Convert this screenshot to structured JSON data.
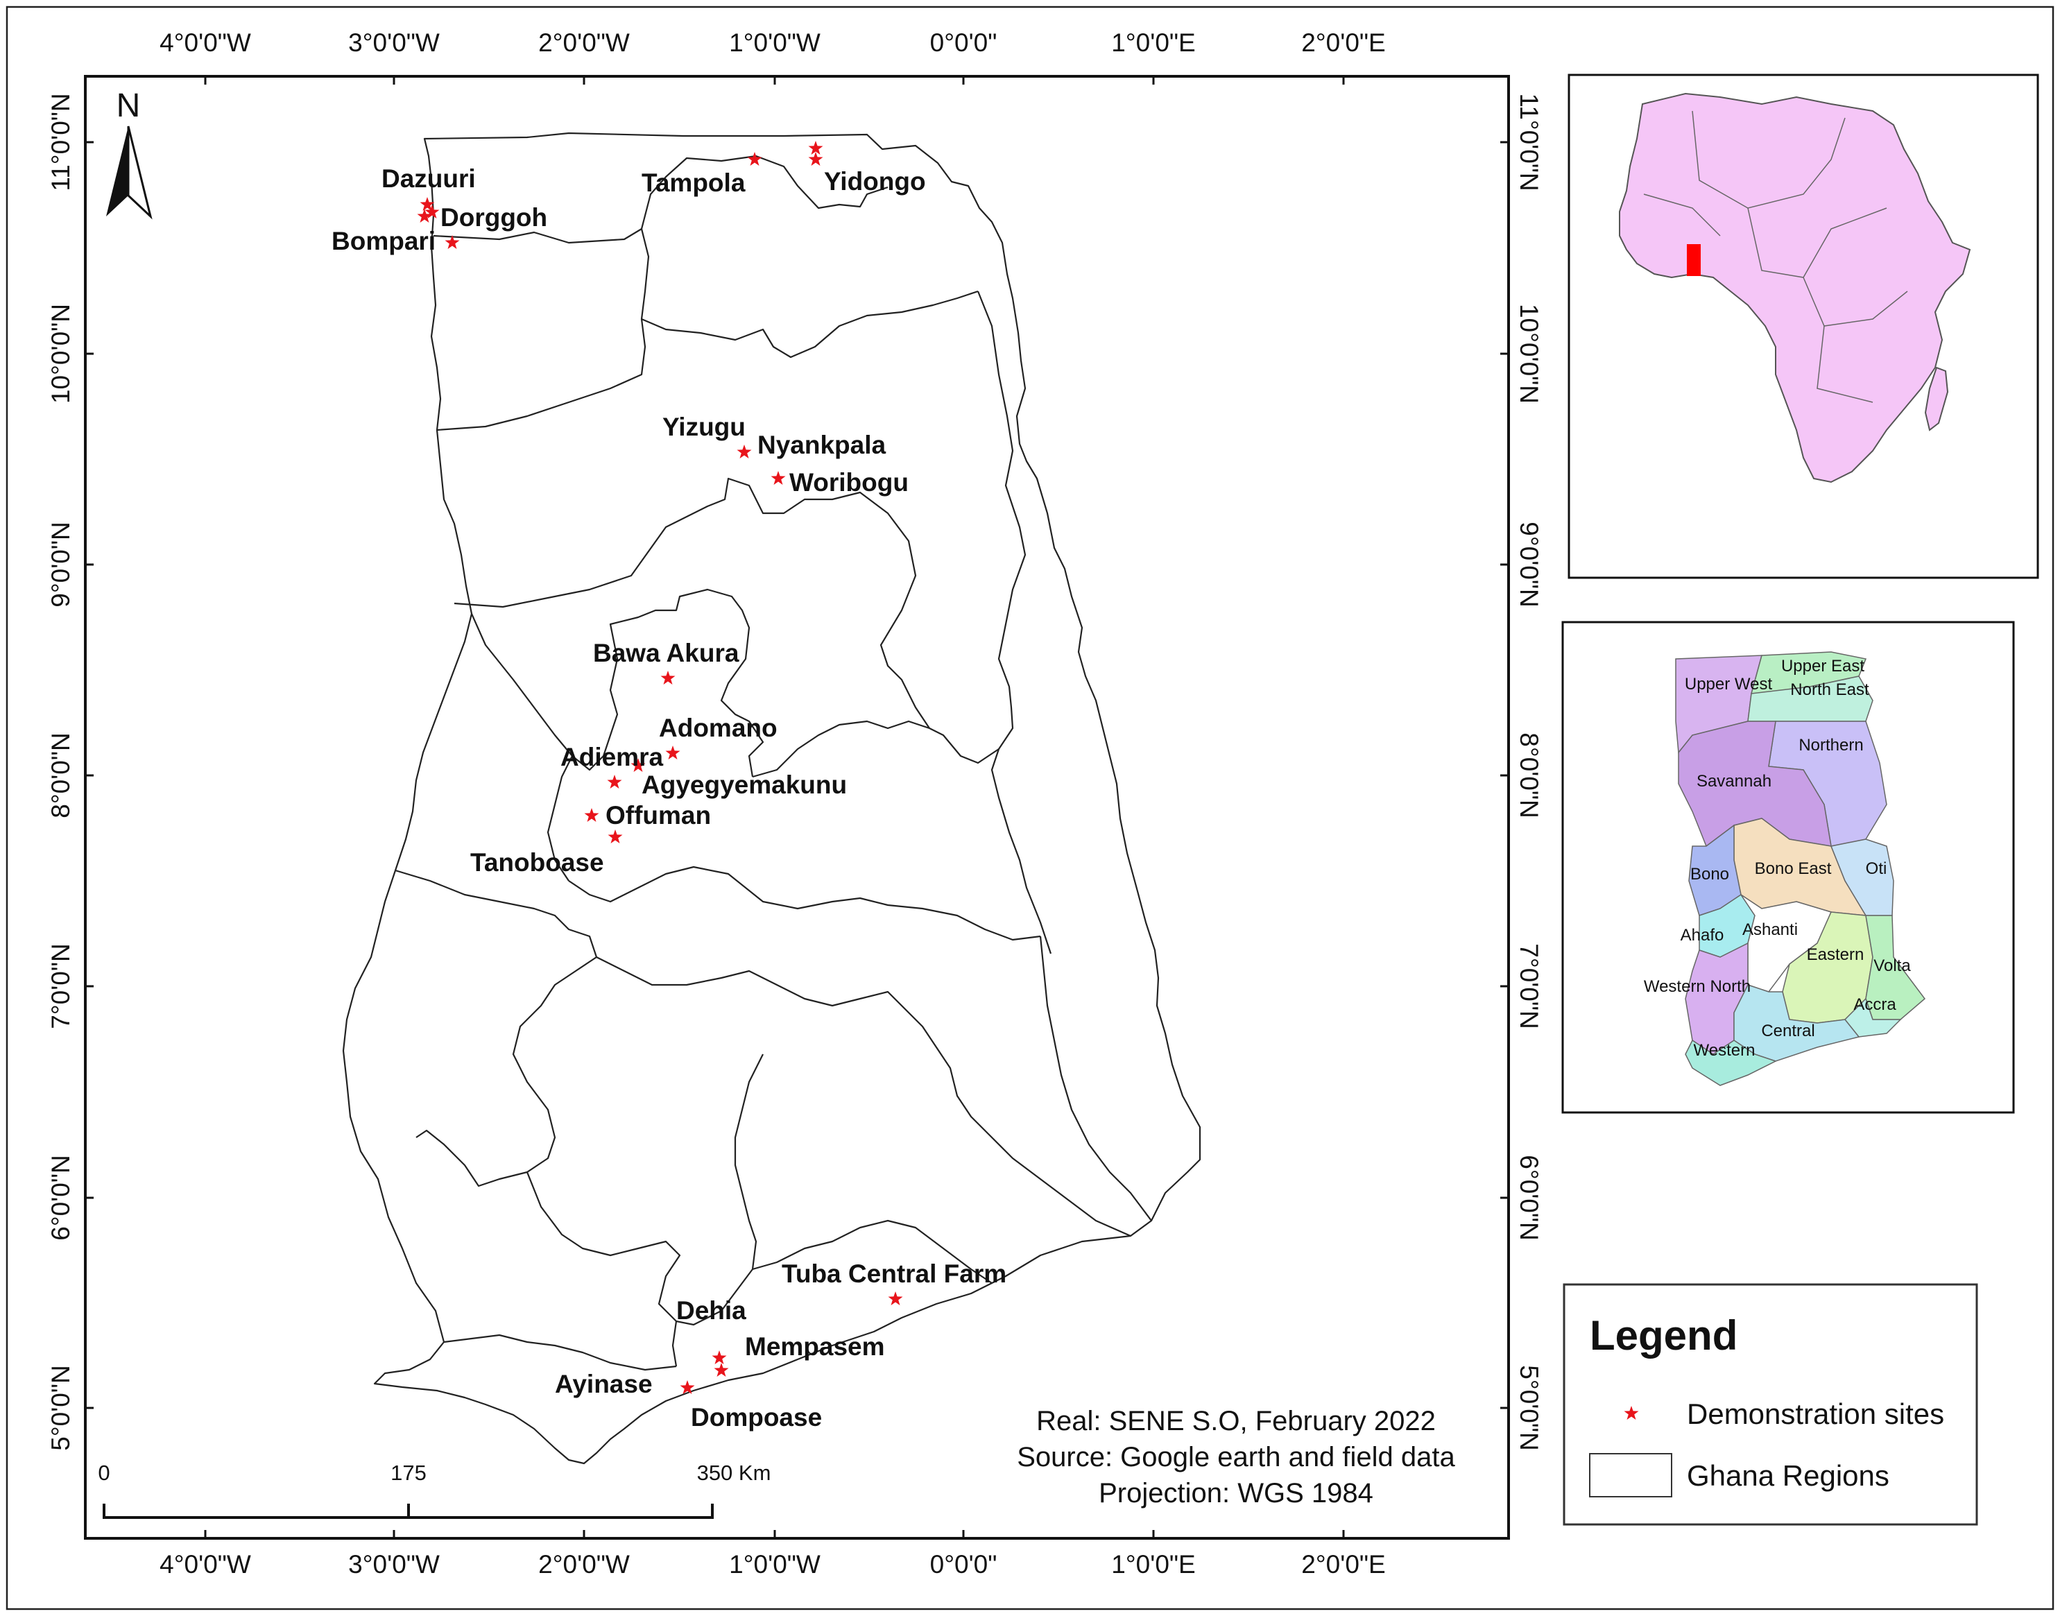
{
  "map": {
    "north_arrow_label": "N",
    "top_axis_labels": [
      "4°0'0\"W",
      "3°0'0\"W",
      "2°0'0\"W",
      "1°0'0\"W",
      "0°0'0\"",
      "1°0'0\"E",
      "2°0'0\"E"
    ],
    "bottom_axis_labels": [
      "4°0'0\"W",
      "3°0'0\"W",
      "2°0'0\"W",
      "1°0'0\"W",
      "0°0'0\"",
      "1°0'0\"E",
      "2°0'0\"E"
    ],
    "left_axis_labels": [
      "11°0'0\"N",
      "10°0'0\"N",
      "9°0'0\"N",
      "8°0'0\"N",
      "7°0'0\"N",
      "6°0'0\"N",
      "5°0'0\"N"
    ],
    "right_axis_labels": [
      "11°0'0\"N",
      "10°0'0\"N",
      "9°0'0\"N",
      "8°0'0\"N",
      "7°0'0\"N",
      "6°0'0\"N",
      "5°0'0\"N"
    ],
    "sites": [
      {
        "name": "Dazuuri"
      },
      {
        "name": "Dorggoh"
      },
      {
        "name": "Bompari"
      },
      {
        "name": "Tampola"
      },
      {
        "name": "Yidongo"
      },
      {
        "name": "Yizugu"
      },
      {
        "name": "Nyankpala"
      },
      {
        "name": "Woribogu"
      },
      {
        "name": "Bawa Akura"
      },
      {
        "name": "Adomano"
      },
      {
        "name": "Adiemra"
      },
      {
        "name": "Agyegyemakunu"
      },
      {
        "name": "Offuman"
      },
      {
        "name": "Tanoboase"
      },
      {
        "name": "Tuba Central Farm"
      },
      {
        "name": "Dehia"
      },
      {
        "name": "Mempasem"
      },
      {
        "name": "Ayinase"
      },
      {
        "name": "Dompoase"
      }
    ],
    "credits": {
      "line1": "Real: SENE S.O, February 2022",
      "line2": "Source: Google earth and field data",
      "line3": "Projection: WGS 1984"
    },
    "scale_bar": {
      "labels": [
        "0",
        "175",
        "350 Km"
      ]
    }
  },
  "regions_inset": {
    "labels": [
      "Upper East",
      "Upper West",
      "North East",
      "Northern",
      "Savannah",
      "Bono",
      "Bono East",
      "Oti",
      "Ahafo",
      "Ashanti",
      "Eastern",
      "Volta",
      "Western North",
      "Accra",
      "Central",
      "Western"
    ]
  },
  "legend": {
    "title": "Legend",
    "items": [
      {
        "label": "Demonstration sites",
        "symbol": "red-star",
        "color": "#e8141b"
      },
      {
        "label": "Ghana Regions",
        "symbol": "white-polygon",
        "color": "#ffffff"
      }
    ]
  },
  "colors": {
    "site_star": "#e8141b",
    "africa_fill": "#f5c6f7",
    "ghana_highlight": "#ff0000"
  }
}
